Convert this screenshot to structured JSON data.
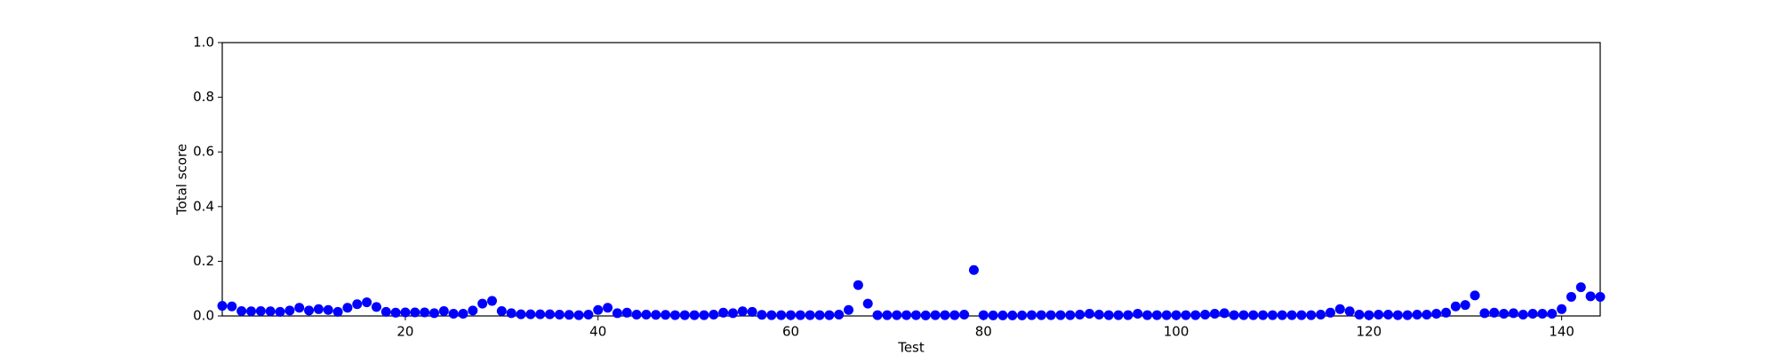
{
  "chart_data": {
    "type": "scatter",
    "xlabel": "Test",
    "ylabel": "Total score",
    "color": "#0000ff",
    "x": [
      1,
      2,
      3,
      4,
      5,
      6,
      7,
      8,
      9,
      10,
      11,
      12,
      13,
      14,
      15,
      16,
      17,
      18,
      19,
      20,
      21,
      22,
      23,
      24,
      25,
      26,
      27,
      28,
      29,
      30,
      31,
      32,
      33,
      34,
      35,
      36,
      37,
      38,
      39,
      40,
      41,
      42,
      43,
      44,
      45,
      46,
      47,
      48,
      49,
      50,
      51,
      52,
      53,
      54,
      55,
      56,
      57,
      58,
      59,
      60,
      61,
      62,
      63,
      64,
      65,
      66,
      67,
      68,
      69,
      70,
      71,
      72,
      73,
      74,
      75,
      76,
      77,
      78,
      79,
      80,
      81,
      82,
      83,
      84,
      85,
      86,
      87,
      88,
      89,
      90,
      91,
      92,
      93,
      94,
      95,
      96,
      97,
      98,
      99,
      100,
      101,
      102,
      103,
      104,
      105,
      106,
      107,
      108,
      109,
      110,
      111,
      112,
      113,
      114,
      115,
      116,
      117,
      118,
      119,
      120,
      121,
      122,
      123,
      124,
      125,
      126,
      127,
      128,
      129,
      130,
      131,
      132,
      133,
      134,
      135,
      136,
      137,
      138,
      139,
      140,
      141,
      142,
      143,
      144
    ],
    "values": [
      0.037,
      0.035,
      0.018,
      0.017,
      0.018,
      0.017,
      0.015,
      0.02,
      0.03,
      0.02,
      0.025,
      0.022,
      0.015,
      0.03,
      0.043,
      0.05,
      0.033,
      0.015,
      0.012,
      0.013,
      0.013,
      0.013,
      0.01,
      0.018,
      0.008,
      0.008,
      0.02,
      0.045,
      0.055,
      0.018,
      0.01,
      0.006,
      0.006,
      0.006,
      0.006,
      0.005,
      0.004,
      0.003,
      0.005,
      0.022,
      0.03,
      0.01,
      0.012,
      0.005,
      0.005,
      0.004,
      0.004,
      0.003,
      0.003,
      0.003,
      0.003,
      0.005,
      0.012,
      0.01,
      0.017,
      0.015,
      0.004,
      0.003,
      0.003,
      0.003,
      0.003,
      0.003,
      0.003,
      0.003,
      0.005,
      0.022,
      0.113,
      0.045,
      0.003,
      0.003,
      0.003,
      0.003,
      0.003,
      0.002,
      0.003,
      0.003,
      0.003,
      0.005,
      0.168,
      0.003,
      0.002,
      0.002,
      0.002,
      0.002,
      0.003,
      0.003,
      0.003,
      0.003,
      0.003,
      0.005,
      0.008,
      0.005,
      0.003,
      0.003,
      0.003,
      0.008,
      0.003,
      0.003,
      0.003,
      0.003,
      0.003,
      0.003,
      0.005,
      0.008,
      0.01,
      0.003,
      0.003,
      0.003,
      0.003,
      0.003,
      0.003,
      0.003,
      0.003,
      0.003,
      0.005,
      0.012,
      0.025,
      0.017,
      0.005,
      0.003,
      0.005,
      0.005,
      0.003,
      0.003,
      0.005,
      0.005,
      0.008,
      0.012,
      0.035,
      0.04,
      0.075,
      0.01,
      0.012,
      0.008,
      0.01,
      0.005,
      0.008,
      0.008,
      0.008,
      0.025,
      0.07,
      0.105,
      0.072,
      0.07
    ],
    "xlim": [
      1,
      144
    ],
    "xticks": [
      20,
      40,
      60,
      80,
      100,
      120,
      140
    ],
    "ylim": [
      0,
      1
    ],
    "yticks": [
      {
        "value": 0,
        "label": "0.0"
      },
      0.2,
      0.4,
      0.6,
      0.8,
      {
        "value": 1,
        "label": "1.0"
      }
    ]
  }
}
